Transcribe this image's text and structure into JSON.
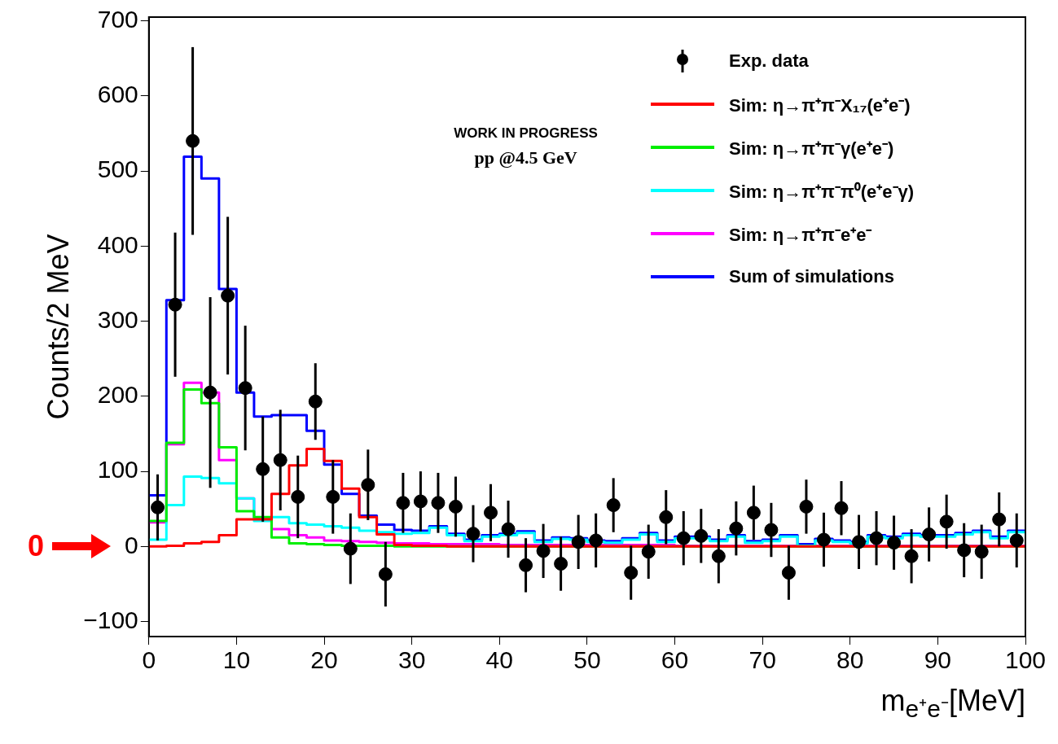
{
  "chart_data": {
    "type": "histogram",
    "xlabel": "m$_{e⁺e⁻}$[MeV]",
    "ylabel": "Counts/2 MeV",
    "annotations": [
      "WORK IN PROGRESS",
      "pp @4.5 GeV",
      "0"
    ],
    "bins": [
      0,
      2,
      4,
      6,
      8,
      10,
      12,
      14,
      16,
      18,
      20,
      22,
      24,
      26,
      28,
      30,
      32,
      34,
      36,
      38,
      40,
      42,
      44,
      46,
      48,
      50,
      52,
      54,
      56,
      58,
      60,
      62,
      64,
      66,
      68,
      70,
      72,
      74,
      76,
      78,
      80,
      82,
      84,
      86,
      88,
      90,
      92,
      94,
      96,
      98,
      100
    ],
    "series": [
      {
        "name": "Exp. data",
        "type": "scatter",
        "color": "#000000",
        "x": [
          1,
          3,
          5,
          7,
          9,
          11,
          13,
          15,
          17,
          19,
          21,
          23,
          25,
          27,
          29,
          31,
          33,
          35,
          37,
          39,
          41,
          43,
          45,
          47,
          49,
          51,
          53,
          55,
          57,
          59,
          61,
          63,
          65,
          67,
          69,
          71,
          73,
          75,
          77,
          79,
          81,
          83,
          85,
          87,
          89,
          91,
          93,
          95,
          97,
          99
        ],
        "values": [
          52,
          322,
          540,
          205,
          334,
          211,
          103,
          115,
          66,
          193,
          66,
          -3,
          82,
          -37,
          58,
          60,
          58,
          53,
          17,
          45,
          23,
          -25,
          -6,
          -23,
          6,
          8,
          55,
          -35,
          -7,
          39,
          11,
          14,
          -13,
          24,
          45,
          22,
          -35,
          53,
          9,
          51,
          6,
          11,
          5,
          -13,
          16,
          33,
          -5,
          -7,
          36,
          8
        ],
        "errors": [
          44,
          96,
          125,
          127,
          105,
          83,
          70,
          67,
          55,
          51,
          49,
          47,
          47,
          43,
          40,
          40,
          40,
          40,
          38,
          38,
          38,
          36,
          36,
          36,
          36,
          36,
          36,
          36,
          36,
          36,
          36,
          36,
          36,
          36,
          36,
          36,
          36,
          36,
          36,
          36,
          36,
          36,
          36,
          36,
          36,
          36,
          36,
          36,
          36,
          36
        ]
      },
      {
        "name": "Sim: η→π⁺π⁻X₁₇(e⁺e⁻)",
        "type": "histogram",
        "color": "#ff0000",
        "values": [
          0,
          1,
          4,
          6,
          15,
          36,
          36,
          70,
          108,
          130,
          114,
          77,
          39,
          16,
          2,
          1,
          1,
          0,
          0,
          0,
          0,
          0,
          0,
          0,
          0,
          0,
          0,
          0,
          0,
          0,
          0,
          0,
          0,
          0,
          0,
          0,
          0,
          0,
          0,
          0,
          0,
          0,
          0,
          0,
          0,
          0,
          0,
          0,
          0,
          0
        ]
      },
      {
        "name": "Sim: η→π⁺π⁻γ(e⁺e⁻)",
        "type": "histogram",
        "color": "#00ee00",
        "values": [
          34,
          138,
          209,
          191,
          132,
          47,
          39,
          12,
          4,
          3,
          2,
          1,
          1,
          1,
          0,
          0,
          0,
          0,
          0,
          0,
          0,
          0,
          0,
          0,
          0,
          0,
          0,
          0,
          0,
          0,
          0,
          0,
          0,
          0,
          0,
          0,
          0,
          0,
          0,
          0,
          0,
          0,
          0,
          0,
          0,
          0,
          0,
          0,
          0,
          0
        ]
      },
      {
        "name": "Sim: η→π⁺π⁻π⁰(e⁺e⁻γ)",
        "type": "histogram",
        "color": "#00ffff",
        "values": [
          9,
          55,
          93,
          91,
          84,
          64,
          34,
          39,
          31,
          29,
          27,
          25,
          21,
          19,
          17,
          18,
          25,
          15,
          7,
          13,
          15,
          18,
          6,
          10,
          9,
          6,
          5,
          9,
          16,
          6,
          11,
          11,
          7,
          13,
          5,
          7,
          13,
          1,
          8,
          6,
          4,
          13,
          11,
          15,
          13,
          13,
          16,
          19,
          11,
          19
        ]
      },
      {
        "name": "Sim: η→π⁺π⁻e⁺e⁻",
        "type": "histogram",
        "color": "#ff00ff",
        "values": [
          32,
          136,
          218,
          205,
          115,
          64,
          38,
          23,
          15,
          12,
          8,
          7,
          6,
          5,
          4,
          4,
          3,
          3,
          3,
          3,
          2,
          2,
          2,
          2,
          2,
          2,
          2,
          2,
          2,
          2,
          1,
          1,
          1,
          1,
          1,
          1,
          1,
          1,
          1,
          1,
          1,
          1,
          1,
          1,
          1,
          1,
          1,
          1,
          1,
          1
        ]
      },
      {
        "name": "Sum of simulations",
        "type": "histogram",
        "color": "#0000ff",
        "values": [
          68,
          328,
          519,
          490,
          343,
          205,
          173,
          175,
          175,
          154,
          109,
          70,
          41,
          29,
          22,
          21,
          27,
          17,
          9,
          15,
          17,
          20,
          8,
          12,
          11,
          8,
          7,
          11,
          18,
          8,
          13,
          13,
          9,
          15,
          7,
          9,
          15,
          3,
          10,
          8,
          6,
          15,
          13,
          17,
          15,
          15,
          18,
          21,
          13,
          21
        ]
      }
    ],
    "xlim": [
      0,
      100
    ],
    "xticks": [
      0,
      10,
      20,
      30,
      40,
      50,
      60,
      70,
      80,
      90,
      100
    ],
    "ylim": [
      -120,
      705
    ],
    "yticks": [
      {
        "value": -100,
        "label": "−100"
      },
      0,
      100,
      200,
      300,
      400,
      500,
      600,
      700
    ],
    "legend": "top right",
    "marker": "circle",
    "grid": false
  }
}
